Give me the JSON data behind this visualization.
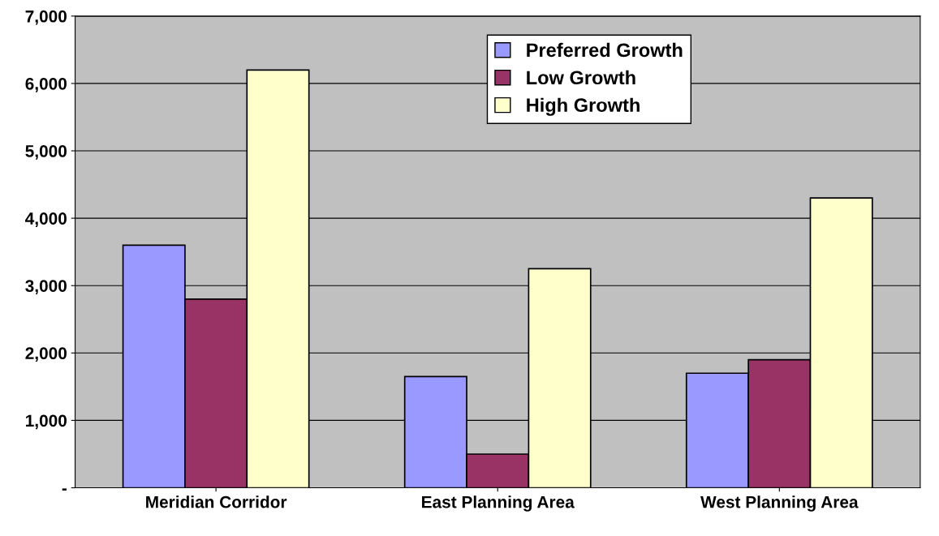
{
  "chart_data": {
    "type": "bar",
    "categories": [
      "Meridian Corridor",
      "East Planning Area",
      "West Planning Area"
    ],
    "series": [
      {
        "name": "Preferred Growth",
        "color": "#9999ff",
        "values": [
          3600,
          1650,
          1700
        ]
      },
      {
        "name": "Low Growth",
        "color": "#993366",
        "values": [
          2800,
          500,
          1900
        ]
      },
      {
        "name": "High Growth",
        "color": "#ffffcc",
        "values": [
          6200,
          3250,
          4300
        ]
      }
    ],
    "ylim": [
      0,
      7000
    ],
    "yticks": [
      {
        "value": 0,
        "label": "-"
      },
      {
        "value": 1000,
        "label": "1,000"
      },
      {
        "value": 2000,
        "label": "2,000"
      },
      {
        "value": 3000,
        "label": "3,000"
      },
      {
        "value": 4000,
        "label": "4,000"
      },
      {
        "value": 5000,
        "label": "5,000"
      },
      {
        "value": 6000,
        "label": "6,000"
      },
      {
        "value": 7000,
        "label": "7,000"
      }
    ],
    "grid": "y",
    "legend": "top right"
  }
}
